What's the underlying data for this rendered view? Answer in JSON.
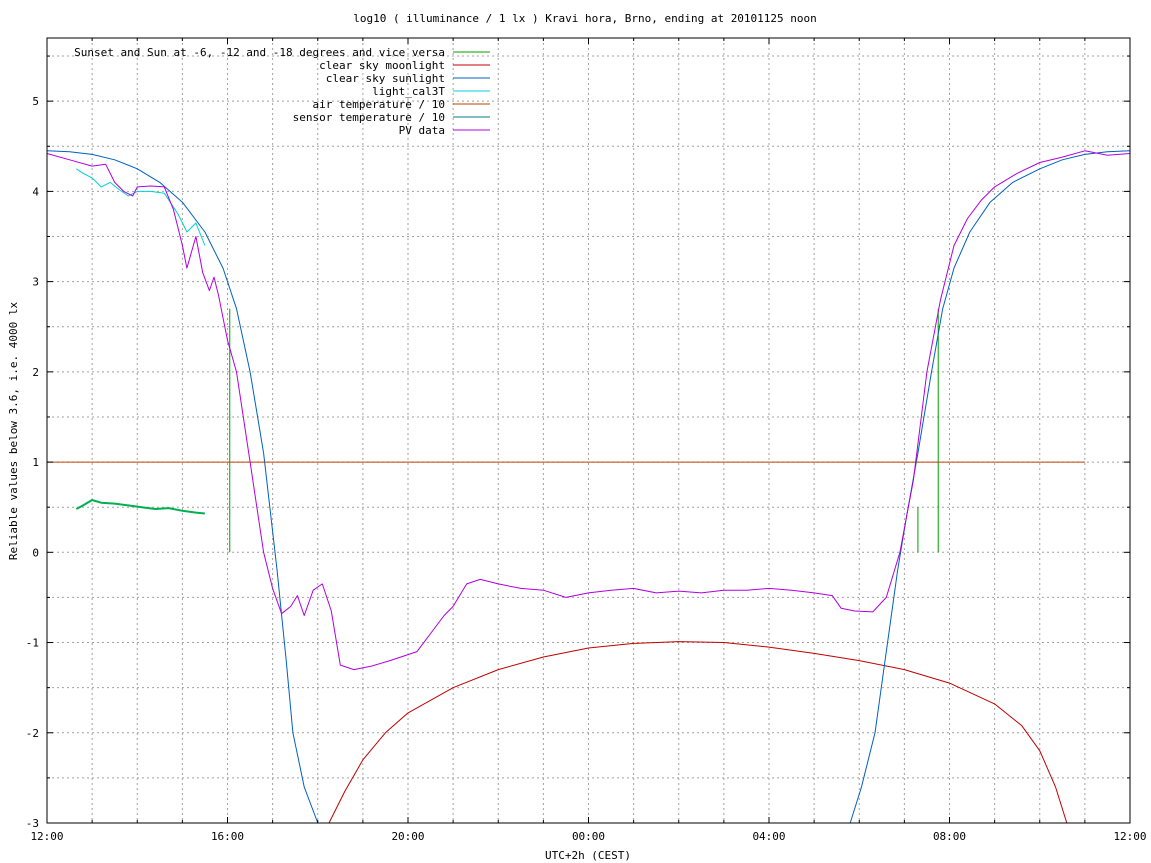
{
  "chart_data": {
    "type": "line",
    "title": "log10 ( illuminance / 1 lx ) Kravi hora, Brno, ending at 20101125 noon",
    "xlabel": "UTC+2h (CEST)",
    "ylabel": "Reliable values below 3.6, i.e. 4000 lx",
    "x_unit": "hours",
    "xlim": [
      12,
      36
    ],
    "ylim": [
      -3,
      5.7
    ],
    "x_ticks": [
      {
        "value": 12,
        "label": "12:00"
      },
      {
        "value": 16,
        "label": "16:00"
      },
      {
        "value": 20,
        "label": "20:00"
      },
      {
        "value": 24,
        "label": "00:00"
      },
      {
        "value": 28,
        "label": "04:00"
      },
      {
        "value": 32,
        "label": "08:00"
      },
      {
        "value": 36,
        "label": "12:00"
      }
    ],
    "y_ticks": [
      {
        "value": -3,
        "label": "-3"
      },
      {
        "value": -2,
        "label": "-2"
      },
      {
        "value": -1,
        "label": "-1"
      },
      {
        "value": 0,
        "label": "0"
      },
      {
        "value": 1,
        "label": "1"
      },
      {
        "value": 2,
        "label": "2"
      },
      {
        "value": 3,
        "label": "3"
      },
      {
        "value": 4,
        "label": "4"
      },
      {
        "value": 5,
        "label": "5"
      }
    ],
    "grid": true,
    "legend_position": "top-left",
    "series": [
      {
        "name": "Sunset and Sun at -6, -12 and -18 degrees and vice versa",
        "color": "#00a000",
        "style": "impulses",
        "points": [
          [
            16.05,
            2.7
          ],
          [
            17.3,
            0
          ],
          [
            17.95,
            0
          ],
          [
            29.55,
            0
          ],
          [
            30.2,
            0
          ],
          [
            31.3,
            0.5
          ],
          [
            31.75,
            2.7
          ]
        ]
      },
      {
        "name": "clear sky moonlight",
        "color": "#c00000",
        "points": [
          [
            18.25,
            -3.0
          ],
          [
            18.6,
            -2.65
          ],
          [
            19.0,
            -2.3
          ],
          [
            19.5,
            -2.0
          ],
          [
            20.0,
            -1.78
          ],
          [
            21.0,
            -1.5
          ],
          [
            22.0,
            -1.3
          ],
          [
            23.0,
            -1.16
          ],
          [
            24.0,
            -1.06
          ],
          [
            25.0,
            -1.01
          ],
          [
            26.0,
            -0.99
          ],
          [
            27.0,
            -1.0
          ],
          [
            28.0,
            -1.05
          ],
          [
            29.0,
            -1.12
          ],
          [
            30.0,
            -1.2
          ],
          [
            31.0,
            -1.3
          ],
          [
            32.0,
            -1.45
          ],
          [
            33.0,
            -1.68
          ],
          [
            33.6,
            -1.92
          ],
          [
            34.0,
            -2.2
          ],
          [
            34.35,
            -2.6
          ],
          [
            34.6,
            -3.0
          ]
        ]
      },
      {
        "name": "clear sky sunlight",
        "color": "#0060c0",
        "points": [
          [
            12.0,
            4.45
          ],
          [
            12.5,
            4.44
          ],
          [
            13.0,
            4.41
          ],
          [
            13.5,
            4.35
          ],
          [
            14.0,
            4.25
          ],
          [
            14.5,
            4.1
          ],
          [
            15.0,
            3.88
          ],
          [
            15.5,
            3.55
          ],
          [
            15.9,
            3.15
          ],
          [
            16.2,
            2.7
          ],
          [
            16.5,
            2.0
          ],
          [
            16.8,
            1.1
          ],
          [
            17.1,
            -0.2
          ],
          [
            17.3,
            -1.2
          ],
          [
            17.45,
            -2.0
          ],
          [
            17.7,
            -2.6
          ],
          [
            18.0,
            -3.0
          ],
          [
            29.8,
            -3.0
          ],
          [
            30.05,
            -2.6
          ],
          [
            30.35,
            -2.0
          ],
          [
            30.6,
            -1.1
          ],
          [
            30.85,
            -0.2
          ],
          [
            31.05,
            0.4
          ],
          [
            31.3,
            1.1
          ],
          [
            31.6,
            2.0
          ],
          [
            31.85,
            2.7
          ],
          [
            32.1,
            3.15
          ],
          [
            32.45,
            3.55
          ],
          [
            32.9,
            3.88
          ],
          [
            33.4,
            4.1
          ],
          [
            34.0,
            4.25
          ],
          [
            34.5,
            4.35
          ],
          [
            35.0,
            4.41
          ],
          [
            35.5,
            4.44
          ],
          [
            36.0,
            4.45
          ]
        ]
      },
      {
        "name": "light_cal3T",
        "color": "#00d0d0",
        "points": [
          [
            12.65,
            4.25
          ],
          [
            12.8,
            4.2
          ],
          [
            13.0,
            4.15
          ],
          [
            13.2,
            4.05
          ],
          [
            13.4,
            4.1
          ],
          [
            13.6,
            4.02
          ],
          [
            13.8,
            3.95
          ],
          [
            14.0,
            4.0
          ],
          [
            14.3,
            4.0
          ],
          [
            14.6,
            3.98
          ],
          [
            14.9,
            3.75
          ],
          [
            15.1,
            3.55
          ],
          [
            15.3,
            3.65
          ],
          [
            15.5,
            3.4
          ]
        ]
      },
      {
        "name": "air temperature / 10",
        "color": "#c04000",
        "points": [
          [
            12.0,
            1.0
          ],
          [
            35.0,
            1.0
          ]
        ]
      },
      {
        "name": "sensor temperature / 10",
        "color": "#008080",
        "points": []
      },
      {
        "name": "PV data",
        "color": "#b000e0",
        "points": [
          [
            12.0,
            4.42
          ],
          [
            12.5,
            4.35
          ],
          [
            13.0,
            4.28
          ],
          [
            13.3,
            4.3
          ],
          [
            13.5,
            4.1
          ],
          [
            13.7,
            4.0
          ],
          [
            13.9,
            3.95
          ],
          [
            14.0,
            4.05
          ],
          [
            14.3,
            4.06
          ],
          [
            14.6,
            4.05
          ],
          [
            14.8,
            3.8
          ],
          [
            15.0,
            3.4
          ],
          [
            15.1,
            3.15
          ],
          [
            15.3,
            3.5
          ],
          [
            15.45,
            3.1
          ],
          [
            15.6,
            2.9
          ],
          [
            15.7,
            3.05
          ],
          [
            15.8,
            2.85
          ],
          [
            16.0,
            2.35
          ],
          [
            16.2,
            2.0
          ],
          [
            16.5,
            1.0
          ],
          [
            16.8,
            0.0
          ],
          [
            17.0,
            -0.4
          ],
          [
            17.2,
            -0.68
          ],
          [
            17.4,
            -0.6
          ],
          [
            17.55,
            -0.48
          ],
          [
            17.7,
            -0.7
          ],
          [
            17.9,
            -0.42
          ],
          [
            18.1,
            -0.35
          ],
          [
            18.3,
            -0.65
          ],
          [
            18.5,
            -1.25
          ],
          [
            18.8,
            -1.3
          ],
          [
            19.2,
            -1.26
          ],
          [
            19.6,
            -1.2
          ],
          [
            19.9,
            -1.15
          ],
          [
            20.2,
            -1.1
          ],
          [
            20.5,
            -0.9
          ],
          [
            20.8,
            -0.7
          ],
          [
            21.0,
            -0.6
          ],
          [
            21.3,
            -0.35
          ],
          [
            21.6,
            -0.3
          ],
          [
            22.0,
            -0.35
          ],
          [
            22.5,
            -0.4
          ],
          [
            23.0,
            -0.42
          ],
          [
            23.5,
            -0.5
          ],
          [
            24.0,
            -0.45
          ],
          [
            24.5,
            -0.42
          ],
          [
            25.0,
            -0.4
          ],
          [
            25.5,
            -0.45
          ],
          [
            26.0,
            -0.43
          ],
          [
            26.5,
            -0.45
          ],
          [
            27.0,
            -0.42
          ],
          [
            27.5,
            -0.42
          ],
          [
            28.0,
            -0.4
          ],
          [
            28.5,
            -0.42
          ],
          [
            29.0,
            -0.45
          ],
          [
            29.4,
            -0.48
          ],
          [
            29.6,
            -0.62
          ],
          [
            29.9,
            -0.65
          ],
          [
            30.3,
            -0.66
          ],
          [
            30.6,
            -0.5
          ],
          [
            30.9,
            0.0
          ],
          [
            31.2,
            0.8
          ],
          [
            31.5,
            2.0
          ],
          [
            31.8,
            2.8
          ],
          [
            32.1,
            3.4
          ],
          [
            32.4,
            3.7
          ],
          [
            32.7,
            3.9
          ],
          [
            33.0,
            4.05
          ],
          [
            33.5,
            4.2
          ],
          [
            34.0,
            4.32
          ],
          [
            34.5,
            4.38
          ],
          [
            35.0,
            4.45
          ],
          [
            35.5,
            4.4
          ],
          [
            36.0,
            4.42
          ]
        ]
      },
      {
        "color": "#00b050",
        "points": [
          [
            12.65,
            0.48
          ],
          [
            12.8,
            0.52
          ],
          [
            13.0,
            0.58
          ],
          [
            13.2,
            0.55
          ],
          [
            13.5,
            0.54
          ],
          [
            13.8,
            0.52
          ],
          [
            14.1,
            0.5
          ],
          [
            14.4,
            0.48
          ],
          [
            14.7,
            0.49
          ],
          [
            15.0,
            0.46
          ],
          [
            15.3,
            0.44
          ],
          [
            15.5,
            0.43
          ]
        ]
      }
    ]
  }
}
